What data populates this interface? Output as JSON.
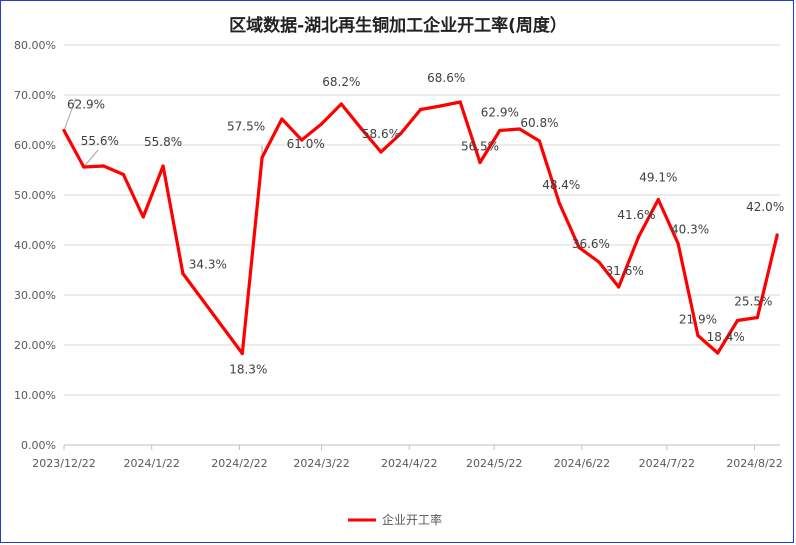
{
  "chart_data": {
    "type": "line",
    "title": "区域数据-湖北再生铜加工企业开工率(周度）",
    "xlabel": "",
    "ylabel": "",
    "ylim": [
      0,
      80
    ],
    "y_tick_labels": [
      "0.00%",
      "10.00%",
      "20.00%",
      "30.00%",
      "40.00%",
      "50.00%",
      "60.00%",
      "70.00%",
      "80.00%"
    ],
    "x_tick_labels": [
      "2023/12/22",
      "2024/1/22",
      "2024/2/22",
      "2024/3/22",
      "2024/4/22",
      "2024/5/22",
      "2024/6/22",
      "2024/7/22",
      "2024/8/22"
    ],
    "x_range": [
      "2023/12/22",
      "2024/8/31"
    ],
    "grid": "horizontal",
    "legend_position": "bottom",
    "line_color": "#ff0000",
    "series": [
      {
        "name": "企业开工率",
        "points": [
          {
            "x": "2023/12/22",
            "y": 62.9,
            "label": "62.9%"
          },
          {
            "x": "2023/12/29",
            "y": 55.6,
            "label": "55.6%"
          },
          {
            "x": "2024/1/5",
            "y": 55.8,
            "label": ""
          },
          {
            "x": "2024/1/12",
            "y": 54.1,
            "label": ""
          },
          {
            "x": "2024/1/19",
            "y": 45.6,
            "label": ""
          },
          {
            "x": "2024/1/26",
            "y": 55.8,
            "label": "55.8%"
          },
          {
            "x": "2024/2/2",
            "y": 34.3,
            "label": "34.3%"
          },
          {
            "x": "2024/2/23",
            "y": 18.3,
            "label": "18.3%"
          },
          {
            "x": "2024/3/1",
            "y": 57.5,
            "label": "57.5%"
          },
          {
            "x": "2024/3/8",
            "y": 65.2,
            "label": ""
          },
          {
            "x": "2024/3/15",
            "y": 61.0,
            "label": "61.0%"
          },
          {
            "x": "2024/3/22",
            "y": 64.2,
            "label": ""
          },
          {
            "x": "2024/3/29",
            "y": 68.2,
            "label": "68.2%"
          },
          {
            "x": "2024/4/5",
            "y": 63.3,
            "label": ""
          },
          {
            "x": "2024/4/12",
            "y": 58.6,
            "label": "58.6%"
          },
          {
            "x": "2024/4/19",
            "y": 62.3,
            "label": ""
          },
          {
            "x": "2024/4/26",
            "y": 67.1,
            "label": ""
          },
          {
            "x": "2024/5/3",
            "y": 67.8,
            "label": ""
          },
          {
            "x": "2024/5/10",
            "y": 68.6,
            "label": "68.6%"
          },
          {
            "x": "2024/5/17",
            "y": 56.5,
            "label": "56.5%"
          },
          {
            "x": "2024/5/24",
            "y": 62.9,
            "label": "62.9%"
          },
          {
            "x": "2024/5/31",
            "y": 63.2,
            "label": ""
          },
          {
            "x": "2024/6/7",
            "y": 60.8,
            "label": "60.8%"
          },
          {
            "x": "2024/6/14",
            "y": 48.4,
            "label": "48.4%"
          },
          {
            "x": "2024/6/21",
            "y": 39.5,
            "label": ""
          },
          {
            "x": "2024/6/28",
            "y": 36.6,
            "label": "36.6%"
          },
          {
            "x": "2024/7/5",
            "y": 31.6,
            "label": "31.6%"
          },
          {
            "x": "2024/7/12",
            "y": 41.6,
            "label": "41.6%"
          },
          {
            "x": "2024/7/19",
            "y": 49.1,
            "label": "49.1%"
          },
          {
            "x": "2024/7/26",
            "y": 40.3,
            "label": "40.3%"
          },
          {
            "x": "2024/8/2",
            "y": 21.9,
            "label": "21.9%"
          },
          {
            "x": "2024/8/9",
            "y": 18.4,
            "label": "18.4%"
          },
          {
            "x": "2024/8/16",
            "y": 24.9,
            "label": ""
          },
          {
            "x": "2024/8/23",
            "y": 25.5,
            "label": "25.5%"
          },
          {
            "x": "2024/8/30",
            "y": 42.0,
            "label": "42.0%"
          }
        ]
      }
    ]
  }
}
